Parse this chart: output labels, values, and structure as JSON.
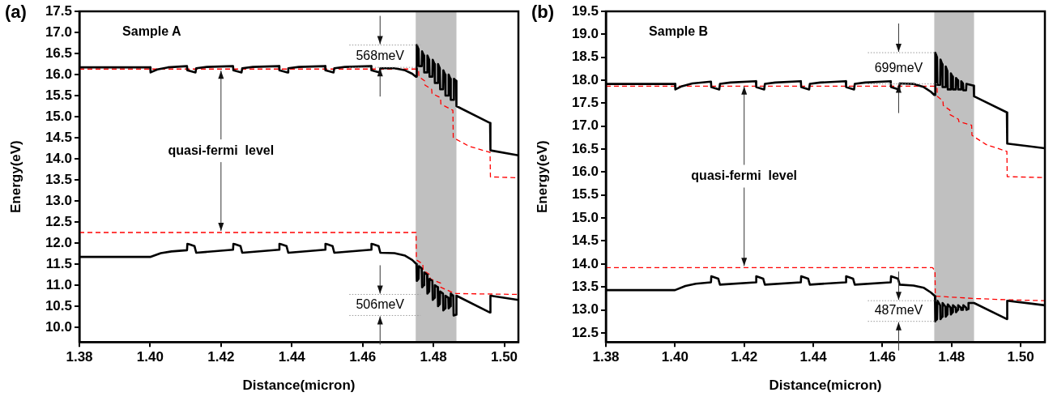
{
  "chart_data": [
    {
      "type": "line",
      "title": "(a)",
      "xlabel": "Distance(micron)",
      "ylabel": "Energy(eV)",
      "xlim": [
        1.38,
        1.504
      ],
      "ylim": [
        9.65,
        17.5
      ],
      "xticks": [
        {
          "value": 1.38,
          "label": "1.38"
        },
        {
          "value": 1.4,
          "label": "1.40"
        },
        {
          "value": 1.42,
          "label": "1.42"
        },
        {
          "value": 1.44,
          "label": "1.44"
        },
        {
          "value": 1.46,
          "label": "1.46"
        },
        {
          "value": 1.48,
          "label": "1.48"
        },
        {
          "value": 1.5,
          "label": "1.50"
        }
      ],
      "yticks": [
        {
          "value": 10,
          "label": "10.0"
        },
        {
          "value": 10.5,
          "label": "10.5"
        },
        {
          "value": 11,
          "label": "11.0"
        },
        {
          "value": 11.5,
          "label": "11.5"
        },
        {
          "value": 12,
          "label": "12.0"
        },
        {
          "value": 12.5,
          "label": "12.5"
        },
        {
          "value": 13,
          "label": "13.0"
        },
        {
          "value": 13.5,
          "label": "13.5"
        },
        {
          "value": 14,
          "label": "14.0"
        },
        {
          "value": 14.5,
          "label": "14.5"
        },
        {
          "value": 15,
          "label": "15.0"
        },
        {
          "value": 15.5,
          "label": "15.5"
        },
        {
          "value": 16,
          "label": "16.0"
        },
        {
          "value": 16.5,
          "label": "16.5"
        },
        {
          "value": 17,
          "label": "17.0"
        },
        {
          "value": 17.5,
          "label": "17.5"
        }
      ],
      "bands": [
        {
          "axis": "x",
          "from": 1.475,
          "to": 1.4865,
          "color": "#c0c0c0"
        }
      ],
      "annotations": [
        "Sample A",
        {
          "text": "quasi-fermi  level",
          "x": 1.42,
          "y": 16.13
        },
        "568meV",
        "506meV"
      ],
      "series": [
        {
          "color": "#000000",
          "line_style": "solid",
          "x": [
            1.38,
            1.4,
            1.4001,
            1.402,
            1.405,
            1.4104,
            1.4105,
            1.4128,
            1.413,
            1.416,
            1.4234,
            1.4235,
            1.4258,
            1.426,
            1.429,
            1.4364,
            1.4365,
            1.4388,
            1.439,
            1.442,
            1.4494,
            1.4495,
            1.4518,
            1.452,
            1.455,
            1.4624,
            1.4625,
            1.4648,
            1.465,
            1.469,
            1.472,
            1.474,
            1.475,
            1.4752,
            1.4753,
            1.4758,
            1.4759,
            1.4767,
            1.4768,
            1.4773,
            1.4774,
            1.4782,
            1.4783,
            1.4788,
            1.4789,
            1.4797,
            1.4798,
            1.4803,
            1.4804,
            1.4812,
            1.4813,
            1.4818,
            1.4819,
            1.4827,
            1.4828,
            1.4833,
            1.4834,
            1.4842,
            1.4843,
            1.4848,
            1.4849,
            1.4857,
            1.4858,
            1.4864,
            1.4865,
            1.496,
            1.4961,
            1.504
          ],
          "values": [
            16.17,
            16.17,
            16.05,
            16.12,
            16.17,
            16.2,
            16.1,
            16.05,
            16.15,
            16.18,
            16.2,
            16.1,
            16.05,
            16.15,
            16.18,
            16.2,
            16.1,
            16.05,
            16.15,
            16.18,
            16.2,
            16.1,
            16.05,
            16.15,
            16.18,
            16.2,
            16.1,
            16.05,
            16.15,
            16.15,
            16.1,
            16.02,
            15.95,
            15.95,
            16.7,
            16.6,
            16.2,
            16.2,
            16.55,
            16.45,
            16.05,
            16.05,
            16.45,
            16.35,
            15.95,
            15.95,
            16.35,
            16.25,
            15.8,
            15.8,
            16.25,
            16.15,
            15.65,
            15.65,
            16.1,
            16.0,
            15.5,
            15.5,
            16.0,
            15.9,
            15.4,
            15.4,
            15.9,
            15.85,
            15.25,
            14.85,
            14.2,
            14.08
          ]
        },
        {
          "color": "#000000",
          "line_style": "solid",
          "x": [
            1.38,
            1.4,
            1.403,
            1.406,
            1.4104,
            1.4105,
            1.411,
            1.4125,
            1.413,
            1.4234,
            1.4235,
            1.424,
            1.4255,
            1.426,
            1.4364,
            1.4365,
            1.437,
            1.4385,
            1.439,
            1.4494,
            1.4495,
            1.45,
            1.4515,
            1.452,
            1.4624,
            1.4625,
            1.463,
            1.4645,
            1.465,
            1.469,
            1.472,
            1.474,
            1.4752,
            1.4753,
            1.4758,
            1.4759,
            1.4767,
            1.4768,
            1.4773,
            1.4774,
            1.4782,
            1.4783,
            1.4788,
            1.4789,
            1.4797,
            1.4798,
            1.4803,
            1.4804,
            1.4812,
            1.4813,
            1.4818,
            1.4819,
            1.4827,
            1.4828,
            1.4833,
            1.4834,
            1.4842,
            1.4843,
            1.4848,
            1.4849,
            1.4856,
            1.4857,
            1.4864,
            1.4865,
            1.496,
            1.4961,
            1.504
          ],
          "values": [
            11.67,
            11.67,
            11.76,
            11.8,
            11.83,
            11.98,
            11.97,
            11.93,
            11.77,
            11.84,
            11.98,
            11.97,
            11.93,
            11.77,
            11.84,
            11.98,
            11.97,
            11.93,
            11.77,
            11.84,
            11.98,
            11.97,
            11.93,
            11.77,
            11.84,
            11.98,
            11.97,
            11.93,
            11.77,
            11.76,
            11.7,
            11.6,
            11.5,
            11.1,
            11.15,
            11.45,
            11.4,
            10.95,
            11.0,
            11.3,
            11.25,
            10.8,
            10.85,
            11.15,
            11.1,
            10.65,
            10.7,
            11.0,
            10.95,
            10.5,
            10.55,
            10.85,
            10.8,
            10.4,
            10.45,
            10.75,
            10.7,
            10.45,
            10.5,
            10.8,
            10.75,
            10.28,
            10.3,
            10.75,
            10.35,
            10.75,
            10.65
          ]
        },
        {
          "color": "#ff0000",
          "line_style": "dashed",
          "x": [
            1.38,
            1.475,
            1.4758,
            1.4759,
            1.4775,
            1.4776,
            1.4795,
            1.4796,
            1.482,
            1.4821,
            1.4855,
            1.4856,
            1.49,
            1.496,
            1.4961,
            1.504
          ],
          "values": [
            16.13,
            16.13,
            16.1,
            15.95,
            15.85,
            15.75,
            15.65,
            15.55,
            15.45,
            15.3,
            15.15,
            14.5,
            14.3,
            14.15,
            13.57,
            13.55
          ]
        },
        {
          "color": "#ff0000",
          "line_style": "dashed",
          "x": [
            1.38,
            1.4751,
            1.4752,
            1.477,
            1.4771,
            1.479,
            1.4791,
            1.482,
            1.4821,
            1.4855,
            1.4865,
            1.504
          ],
          "values": [
            12.25,
            12.25,
            11.6,
            11.5,
            11.35,
            11.25,
            11.15,
            11.05,
            10.95,
            10.82,
            10.8,
            10.78
          ]
        }
      ]
    },
    {
      "type": "line",
      "title": "(b)",
      "xlabel": "Distance(micron)",
      "ylabel": "Energy(eV)",
      "xlim": [
        1.38,
        1.507
      ],
      "ylim": [
        12.3,
        19.5
      ],
      "xticks": [
        {
          "value": 1.38,
          "label": "1.38"
        },
        {
          "value": 1.4,
          "label": "1.40"
        },
        {
          "value": 1.42,
          "label": "1.42"
        },
        {
          "value": 1.44,
          "label": "1.44"
        },
        {
          "value": 1.46,
          "label": "1.46"
        },
        {
          "value": 1.48,
          "label": "1.48"
        },
        {
          "value": 1.5,
          "label": "1.50"
        }
      ],
      "yticks": [
        {
          "value": 12.5,
          "label": "12.5"
        },
        {
          "value": 13,
          "label": "13.0"
        },
        {
          "value": 13.5,
          "label": "13.5"
        },
        {
          "value": 14,
          "label": "14.0"
        },
        {
          "value": 14.5,
          "label": "14.5"
        },
        {
          "value": 15,
          "label": "15.0"
        },
        {
          "value": 15.5,
          "label": "15.5"
        },
        {
          "value": 16,
          "label": "16.0"
        },
        {
          "value": 16.5,
          "label": "16.5"
        },
        {
          "value": 17,
          "label": "17.0"
        },
        {
          "value": 17.5,
          "label": "17.5"
        },
        {
          "value": 18,
          "label": "18.0"
        },
        {
          "value": 18.5,
          "label": "18.5"
        },
        {
          "value": 19,
          "label": "19.0"
        },
        {
          "value": 19.5,
          "label": "19.5"
        }
      ],
      "bands": [
        {
          "axis": "x",
          "from": 1.475,
          "to": 1.4865,
          "color": "#c0c0c0"
        }
      ],
      "annotations": [
        "Sample B",
        {
          "text": "quasi-fermi  level",
          "x": 1.42,
          "y": 17.9
        },
        "699meV",
        "487meV"
      ],
      "series": [
        {
          "color": "#000000",
          "line_style": "solid",
          "x": [
            1.38,
            1.4,
            1.4001,
            1.402,
            1.405,
            1.4104,
            1.4105,
            1.4128,
            1.413,
            1.416,
            1.4234,
            1.4235,
            1.4258,
            1.426,
            1.429,
            1.4364,
            1.4365,
            1.4388,
            1.439,
            1.442,
            1.4494,
            1.4495,
            1.4518,
            1.452,
            1.455,
            1.4624,
            1.4625,
            1.4648,
            1.465,
            1.469,
            1.472,
            1.474,
            1.475,
            1.4752,
            1.4753,
            1.4758,
            1.4759,
            1.4767,
            1.4768,
            1.4773,
            1.4774,
            1.4782,
            1.4783,
            1.4788,
            1.4789,
            1.4797,
            1.4798,
            1.4803,
            1.4804,
            1.4812,
            1.4813,
            1.4818,
            1.4819,
            1.4827,
            1.4828,
            1.4833,
            1.4834,
            1.4842,
            1.4843,
            1.4864,
            1.4865,
            1.496,
            1.4961,
            1.507
          ],
          "values": [
            17.92,
            17.92,
            17.8,
            17.87,
            17.93,
            17.97,
            17.85,
            17.8,
            17.92,
            17.95,
            17.98,
            17.85,
            17.8,
            17.92,
            17.95,
            17.98,
            17.85,
            17.8,
            17.92,
            17.95,
            17.98,
            17.85,
            17.8,
            17.92,
            17.95,
            17.98,
            17.85,
            17.8,
            17.93,
            17.92,
            17.85,
            17.75,
            17.68,
            17.68,
            18.6,
            18.5,
            17.9,
            17.9,
            18.45,
            18.35,
            17.85,
            17.85,
            18.3,
            18.2,
            17.8,
            17.8,
            18.15,
            18.08,
            17.8,
            17.8,
            18.05,
            18.0,
            17.8,
            17.8,
            17.98,
            17.93,
            17.78,
            17.78,
            17.92,
            17.88,
            17.65,
            17.3,
            16.62,
            16.52
          ]
        },
        {
          "color": "#000000",
          "line_style": "solid",
          "x": [
            1.38,
            1.4,
            1.403,
            1.406,
            1.4104,
            1.4105,
            1.411,
            1.4125,
            1.413,
            1.4234,
            1.4235,
            1.424,
            1.4255,
            1.426,
            1.4364,
            1.4365,
            1.437,
            1.4385,
            1.439,
            1.4494,
            1.4495,
            1.45,
            1.4515,
            1.452,
            1.4624,
            1.4625,
            1.463,
            1.4645,
            1.465,
            1.469,
            1.472,
            1.474,
            1.4752,
            1.4753,
            1.4758,
            1.4759,
            1.4767,
            1.4768,
            1.4773,
            1.4774,
            1.4782,
            1.4783,
            1.4788,
            1.4789,
            1.4797,
            1.4798,
            1.4803,
            1.4804,
            1.4812,
            1.4813,
            1.4818,
            1.4819,
            1.4827,
            1.4828,
            1.4833,
            1.4834,
            1.4842,
            1.4843,
            1.4848,
            1.4849,
            1.4865,
            1.496,
            1.4961,
            1.507
          ],
          "values": [
            13.43,
            13.43,
            13.52,
            13.57,
            13.6,
            13.73,
            13.72,
            13.68,
            13.55,
            13.6,
            13.73,
            13.72,
            13.68,
            13.55,
            13.6,
            13.73,
            13.72,
            13.68,
            13.55,
            13.6,
            13.73,
            13.72,
            13.68,
            13.55,
            13.6,
            13.73,
            13.72,
            13.68,
            13.55,
            13.53,
            13.48,
            13.38,
            13.3,
            12.75,
            12.8,
            13.2,
            13.1,
            12.8,
            12.85,
            13.15,
            13.07,
            12.85,
            12.9,
            13.12,
            13.05,
            12.9,
            12.95,
            13.1,
            13.05,
            12.95,
            13.0,
            13.1,
            13.05,
            13.0,
            13.0,
            13.1,
            13.05,
            13.0,
            13.02,
            13.15,
            13.15,
            12.8,
            13.2,
            13.1
          ]
        },
        {
          "color": "#ff0000",
          "line_style": "dashed",
          "x": [
            1.38,
            1.475,
            1.4758,
            1.4759,
            1.4775,
            1.4776,
            1.4795,
            1.4796,
            1.482,
            1.4821,
            1.4858,
            1.4859,
            1.49,
            1.496,
            1.4961,
            1.507
          ],
          "values": [
            17.87,
            17.87,
            17.85,
            17.65,
            17.55,
            17.45,
            17.35,
            17.25,
            17.15,
            17.1,
            17.02,
            16.8,
            16.6,
            16.45,
            15.9,
            15.88
          ]
        },
        {
          "color": "#ff0000",
          "line_style": "dashed",
          "x": [
            1.38,
            1.4745,
            1.4752,
            1.4753,
            1.486,
            1.496,
            1.507
          ],
          "values": [
            13.92,
            13.92,
            13.85,
            13.3,
            13.25,
            13.22,
            13.2
          ]
        }
      ]
    }
  ]
}
